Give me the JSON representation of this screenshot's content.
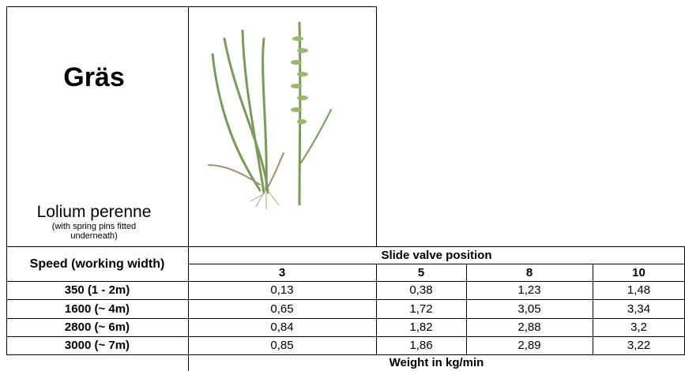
{
  "header": {
    "title": "Gräs",
    "species": "Lolium perenne",
    "note": "(with spring pins fitted underneath)"
  },
  "table": {
    "row_header": "Speed (working width)",
    "column_group": "Slide valve position",
    "columns": [
      "3",
      "5",
      "8",
      "10"
    ],
    "rows": [
      [
        "350 (1 - 2m)",
        "0,13",
        "0,38",
        "1,23",
        "1,48"
      ],
      [
        "1600 (~ 4m)",
        "0,65",
        "1,72",
        "3,05",
        "3,34"
      ],
      [
        "2800 (~ 6m)",
        "0,84",
        "1,82",
        "2,88",
        "3,2"
      ],
      [
        "3000 (~ 7m)",
        "0,85",
        "1,86",
        "2,89",
        "3,22"
      ]
    ],
    "footer": "Weight in kg/min"
  }
}
